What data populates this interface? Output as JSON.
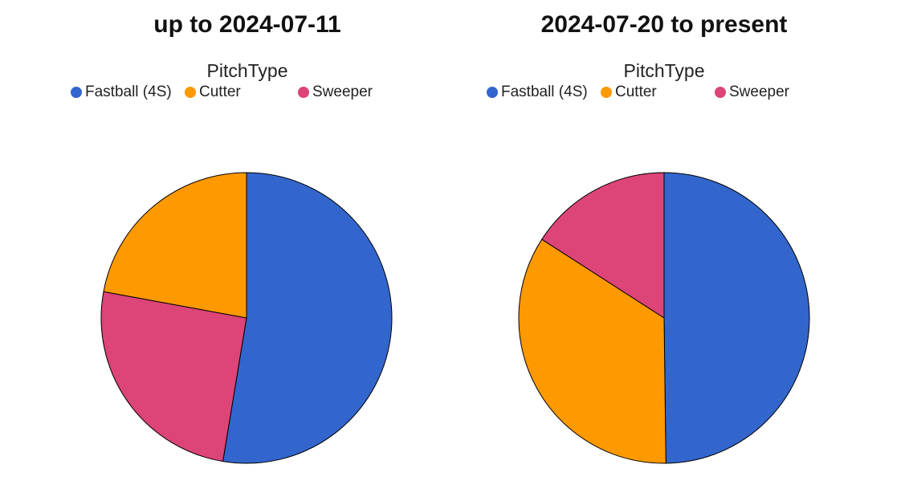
{
  "chart_data": [
    {
      "type": "pie",
      "title": "up to 2024-07-11",
      "legend_title": "PitchType",
      "legend_placement": "top",
      "legend": [
        "Fastball (4S)",
        "Cutter",
        "Sweeper"
      ],
      "slices": [
        {
          "label": "Fastball (4S)",
          "value": 52.6,
          "color": "#3366cc"
        },
        {
          "label": "Sweeper",
          "value": 25.3,
          "color": "#dd4477"
        },
        {
          "label": "Cutter",
          "value": 22.1,
          "color": "#ff9900"
        }
      ]
    },
    {
      "type": "pie",
      "title": "2024-07-20 to present",
      "legend_title": "PitchType",
      "legend_placement": "top",
      "legend": [
        "Fastball (4S)",
        "Cutter",
        "Sweeper"
      ],
      "slices": [
        {
          "label": "Fastball (4S)",
          "value": 49.8,
          "color": "#3366cc"
        },
        {
          "label": "Cutter",
          "value": 34.3,
          "color": "#ff9900"
        },
        {
          "label": "Sweeper",
          "value": 15.9,
          "color": "#dd4477"
        }
      ]
    }
  ],
  "colors": {
    "Fastball (4S)": "#3366cc",
    "Cutter": "#ff9900",
    "Sweeper": "#dd4477"
  }
}
